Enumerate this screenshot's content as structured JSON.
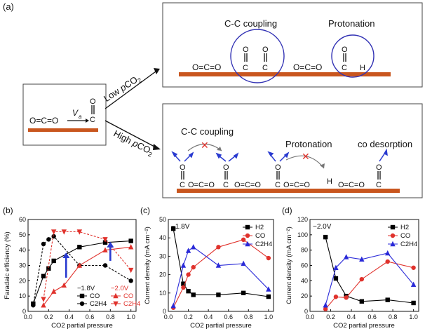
{
  "schematic": {
    "panel_label": "(a)",
    "left_box": {
      "mol": "O=C=O",
      "velocity": "V",
      "velocity_sub": "a",
      "adsorbed_top": "O",
      "adsorbed_bond": "C"
    },
    "low_label": "Low ",
    "low_label_p": "p",
    "low_label_co2": "CO",
    "low_label_sub": "2",
    "high_label": "High ",
    "high_label_p": "p",
    "high_label_co2": "CO",
    "high_label_sub": "2",
    "top_box": {
      "cc_coupling": "C-C coupling",
      "protonation": "Protonation",
      "mol1": "O=C=O",
      "mol2": "O=C=O",
      "atom_o": "O",
      "atom_c": "C",
      "atom_h": "H"
    },
    "bottom_box": {
      "cc_coupling": "C-C coupling",
      "protonation": "Protonation",
      "desorption": "co desorption",
      "row": "O=C=O",
      "atom_o": "O",
      "atom_c": "C",
      "atom_h": "H"
    }
  },
  "chart_data": [
    {
      "panel": "(b)",
      "type": "line",
      "xlabel": "CO2 partial pressure",
      "ylabel": "Faradaic efficiency (%)",
      "xlim": [
        0,
        1.05
      ],
      "ylim": [
        0,
        60
      ],
      "xticks": [
        "0.0",
        "0.2",
        "0.4",
        "0.6",
        "0.8",
        "1.0"
      ],
      "yticks": [
        "0",
        "10",
        "20",
        "30",
        "40",
        "50",
        "60"
      ],
      "legend": {
        "title_a": "−1.8V",
        "title_b": "−2.0V"
      },
      "series": [
        {
          "name": "CO",
          "group": "-1.8V",
          "color": "#000000",
          "marker": "square",
          "dash": false,
          "x": [
            0.05,
            0.15,
            0.2,
            0.25,
            0.5,
            0.75,
            1.0
          ],
          "y": [
            5,
            23,
            28,
            33,
            42,
            45,
            46
          ]
        },
        {
          "name": "C2H4",
          "group": "-1.8V",
          "color": "#000000",
          "marker": "circle",
          "dash": true,
          "x": [
            0.05,
            0.15,
            0.2,
            0.25,
            0.5,
            0.75,
            1.0
          ],
          "y": [
            4,
            44,
            47,
            49,
            30,
            30,
            20
          ]
        },
        {
          "name": "CO",
          "group": "-2.0V",
          "color": "#e0322c",
          "marker": "triangle-up",
          "dash": false,
          "x": [
            0.15,
            0.25,
            0.35,
            0.5,
            0.75,
            1.0
          ],
          "y": [
            4,
            13,
            17,
            30,
            40,
            42
          ]
        },
        {
          "name": "C2H4",
          "group": "-2.0V",
          "color": "#e0322c",
          "marker": "triangle-down",
          "dash": true,
          "x": [
            0.15,
            0.25,
            0.35,
            0.5,
            0.75,
            1.0
          ],
          "y": [
            8,
            52,
            52,
            52,
            47,
            27
          ]
        }
      ],
      "arrows": [
        {
          "x": 0.37,
          "y0": 22,
          "y1": 38
        },
        {
          "x": 0.8,
          "y0": 33,
          "y1": 45
        }
      ]
    },
    {
      "panel": "(c)",
      "type": "line",
      "annotation": "−1.8V",
      "xlabel": "CO2 partial pressure",
      "ylabel": "Current density (mA cm⁻²)",
      "xlim": [
        0,
        1.05
      ],
      "ylim": [
        0,
        50
      ],
      "xticks": [
        "0.0",
        "0.2",
        "0.4",
        "0.6",
        "0.8",
        "1.0"
      ],
      "yticks": [
        "0",
        "10",
        "20",
        "30",
        "40",
        "50"
      ],
      "series": [
        {
          "name": "H2",
          "color": "#000000",
          "marker": "square",
          "x": [
            0.05,
            0.15,
            0.2,
            0.25,
            0.5,
            0.75,
            1.0
          ],
          "y": [
            45,
            15,
            11,
            9,
            9,
            10,
            8
          ]
        },
        {
          "name": "CO",
          "color": "#e0322c",
          "marker": "circle",
          "x": [
            0.05,
            0.15,
            0.2,
            0.25,
            0.5,
            0.75,
            1.0
          ],
          "y": [
            2,
            13,
            20,
            24,
            35,
            39,
            29
          ]
        },
        {
          "name": "C2H4",
          "color": "#2a2ad8",
          "marker": "triangle-up",
          "x": [
            0.05,
            0.15,
            0.2,
            0.25,
            0.5,
            0.75,
            1.0
          ],
          "y": [
            3,
            25,
            33,
            35,
            25,
            26,
            12
          ]
        }
      ]
    },
    {
      "panel": "(d)",
      "type": "line",
      "annotation": "−2.0V",
      "xlabel": "CO2 partial pressure",
      "ylabel": "Current density (mA cm⁻²)",
      "xlim": [
        0,
        1.05
      ],
      "ylim": [
        0,
        120
      ],
      "xticks": [
        "0.0",
        "0.2",
        "0.4",
        "0.6",
        "0.8",
        "1.0"
      ],
      "yticks": [
        "0",
        "20",
        "40",
        "60",
        "80",
        "100",
        "120"
      ],
      "series": [
        {
          "name": "H2",
          "color": "#000000",
          "marker": "square",
          "x": [
            0.15,
            0.25,
            0.35,
            0.5,
            0.75,
            1.0
          ],
          "y": [
            97,
            43,
            20,
            13,
            15,
            11
          ]
        },
        {
          "name": "CO",
          "color": "#e0322c",
          "marker": "circle",
          "x": [
            0.15,
            0.25,
            0.35,
            0.5,
            0.75,
            1.0
          ],
          "y": [
            3,
            19,
            18,
            42,
            65,
            57
          ]
        },
        {
          "name": "C2H4",
          "color": "#2a2ad8",
          "marker": "triangle-up",
          "x": [
            0.15,
            0.25,
            0.35,
            0.5,
            0.75,
            1.0
          ],
          "y": [
            8,
            57,
            71,
            68,
            76,
            35
          ]
        }
      ]
    }
  ]
}
